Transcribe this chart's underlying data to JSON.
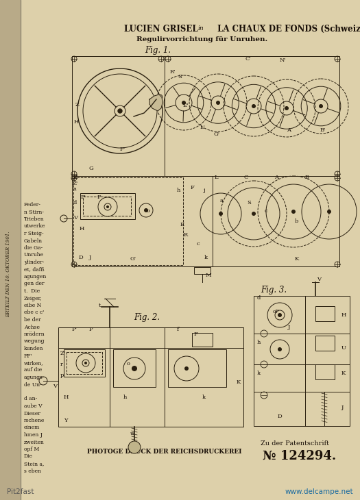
{
  "bg_color": "#d4c9a8",
  "page_bg": "#e0d5b5",
  "main_bg": "#ddd0aa",
  "left_col_bg": "#cfc4a2",
  "title1": "LUCIEN GRISEL ",
  "title1b": "in",
  "title1c": " LA CHAUX DE FONDS (Schweiz).",
  "title2": "Regulirvorrichtung für Unruhen.",
  "fig1_label": "Fig. 1.",
  "fig2_label": "Fig. 2.",
  "fig3_label": "Fig. 3.",
  "bottom_center": "PHOTOGE DRUCK DER REICHSDRUCKEREI",
  "patent_label": "Zu der Patentschrift",
  "patent_number": "№ 124294.",
  "watermark_left": "Pit2fast",
  "watermark_right": "www.delcampe.net",
  "side_text": "ERTEILT DEN 10. OKTOBER 1901.",
  "left_text": [
    "Feder-",
    "n Stirn-",
    "Trieben",
    "utwerke",
    "r Steig-",
    "Gabeln",
    "die Ga-",
    "Unruhe",
    "ylinder-",
    "et, dafß",
    "agungen",
    "gen der",
    "t.  Die",
    "Zeiger,",
    "eibe N",
    "ebe c c'",
    "be der",
    "Achse",
    "nrädern",
    "wegung",
    "kunden",
    "FF'",
    "wirken,",
    "auf die",
    "agungs-",
    "de Un-",
    "",
    "d an-",
    "aube V",
    "Dieser",
    "rschene",
    "einem",
    "hmen J",
    "zweiten",
    "opf M",
    "Die",
    "Stein a,",
    "s eben"
  ],
  "dc": "#2a2010",
  "tc": "#1a1008",
  "lc": "#3a3020"
}
